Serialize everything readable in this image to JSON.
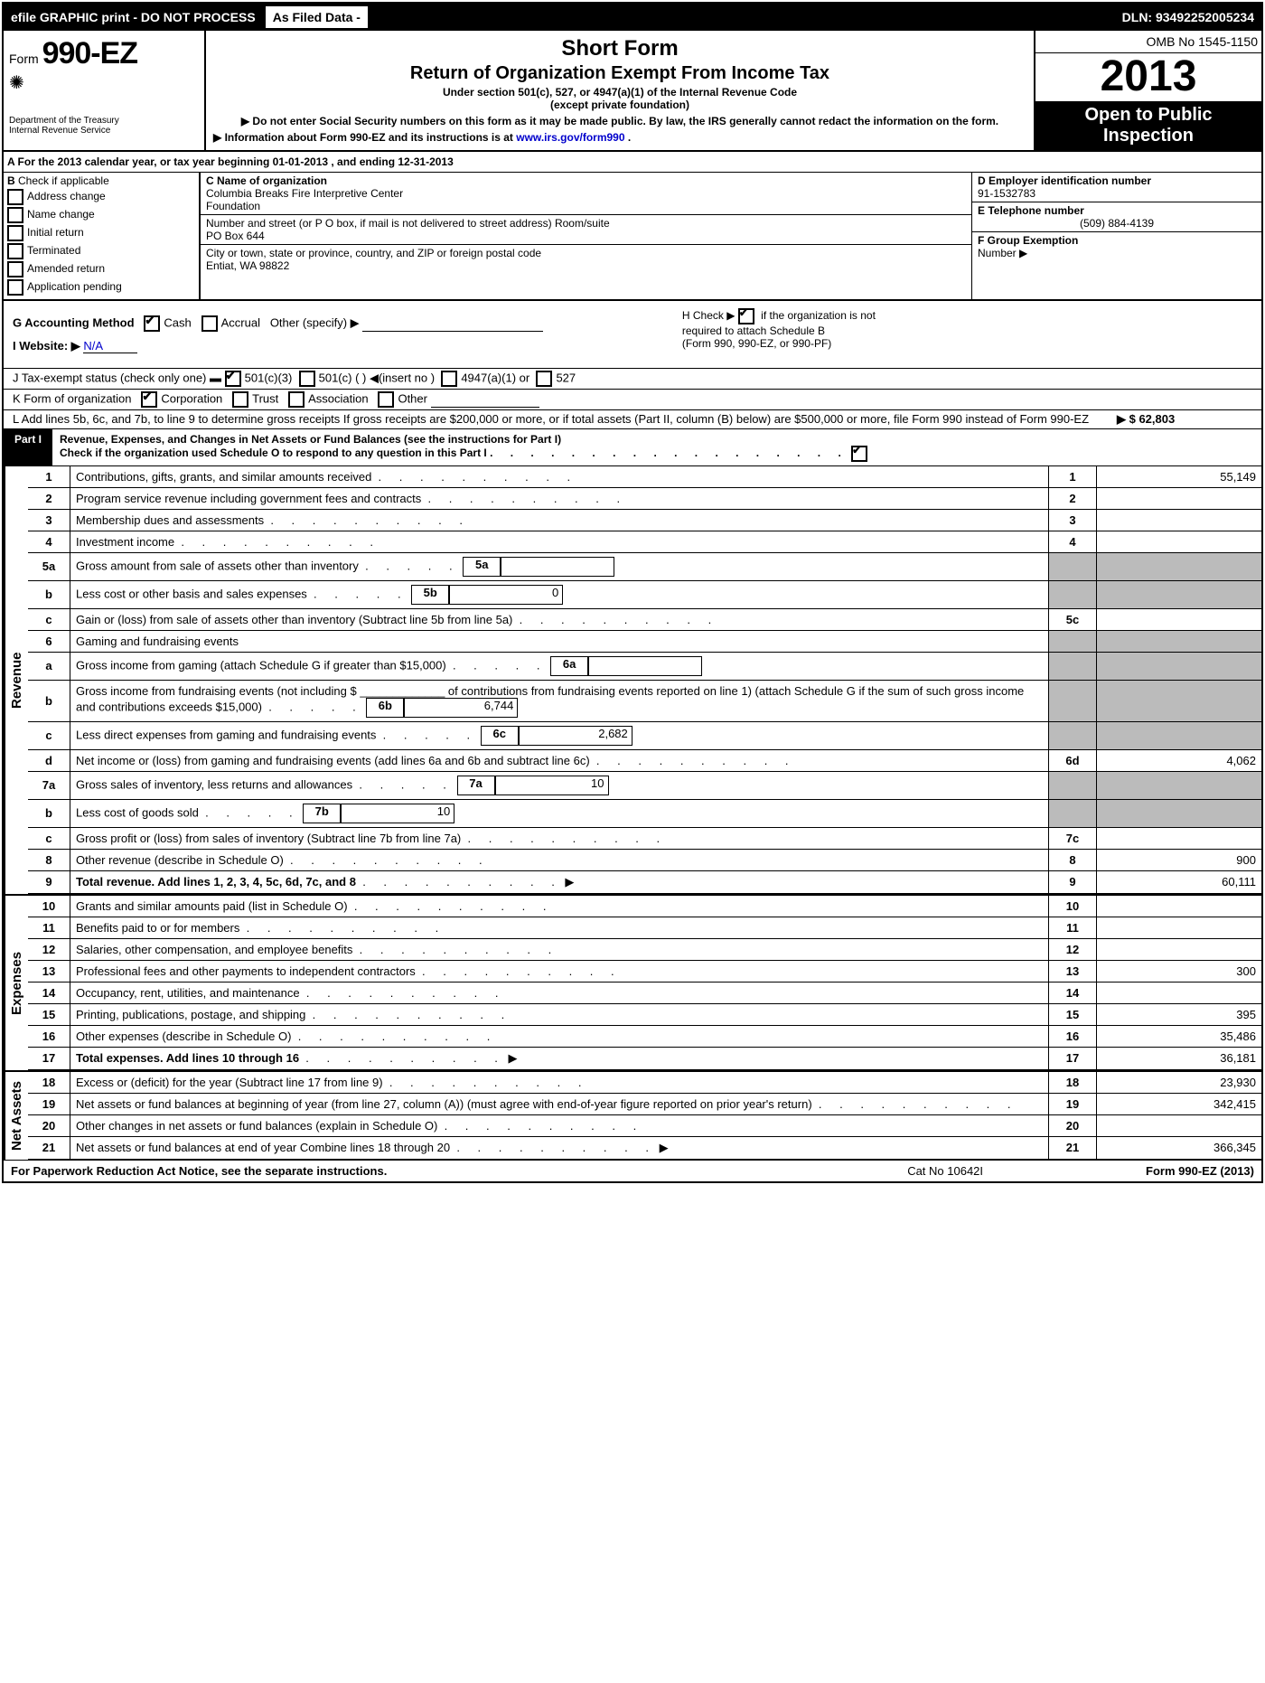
{
  "topbar": {
    "efile": "efile GRAPHIC print - DO NOT PROCESS",
    "asfiled": "As Filed Data -",
    "dln": "DLN: 93492252005234"
  },
  "header": {
    "form_prefix": "Form",
    "form_number": "990-EZ",
    "dept1": "Department of the Treasury",
    "dept2": "Internal Revenue Service",
    "short_form": "Short Form",
    "title": "Return of Organization Exempt From Income Tax",
    "subtitle": "Under section 501(c), 527, or 4947(a)(1) of the Internal Revenue Code",
    "paren": "(except private foundation)",
    "note1": "▶ Do not enter Social Security numbers on this form as it may be made public. By law, the IRS generally cannot redact the information on the form.",
    "note2_prefix": "▶ Information about Form 990-EZ and its instructions is at ",
    "note2_link": "www.irs.gov/form990",
    "note2_suffix": ".",
    "omb": "OMB No 1545-1150",
    "year": "2013",
    "open1": "Open to Public",
    "open2": "Inspection"
  },
  "lineA": "A  For the 2013 calendar year, or tax year beginning 01-01-2013           , and ending 12-31-2013",
  "B": {
    "label": "B",
    "text": "Check if applicable",
    "opts": [
      "Address change",
      "Name change",
      "Initial return",
      "Terminated",
      "Amended return",
      "Application pending"
    ]
  },
  "C": {
    "name_label": "C Name of organization",
    "name1": "Columbia Breaks Fire Interpretive Center",
    "name2": "Foundation",
    "street_label": "Number and street (or P O box, if mail is not delivered to street address) Room/suite",
    "street": "PO Box 644",
    "city_label": "City or town, state or province, country, and ZIP or foreign postal code",
    "city": "Entiat, WA 98822"
  },
  "D": {
    "ein_label": "D Employer identification number",
    "ein": "91-1532783",
    "phone_label": "E Telephone number",
    "phone": "(509) 884-4139",
    "group_label": "F Group Exemption",
    "group2": "Number      ▶"
  },
  "G": {
    "label": "G Accounting Method",
    "cash": "Cash",
    "accrual": "Accrual",
    "other": "Other (specify) ▶"
  },
  "H": {
    "text1": "H  Check ▶",
    "text2": "if the organization is not",
    "text3": "required to attach Schedule B",
    "text4": "(Form 990, 990-EZ, or 990-PF)"
  },
  "I": {
    "label": "I Website: ▶",
    "value": "N/A"
  },
  "J": {
    "label": "J Tax-exempt status",
    "text": "(check only one) ▬",
    "c3": "501(c)(3)",
    "c": "501(c) (   ) ◀(insert no )",
    "a1": "4947(a)(1) or",
    "s527": "527"
  },
  "K": {
    "label": "K Form of organization",
    "opts": [
      "Corporation",
      "Trust",
      "Association",
      "Other"
    ]
  },
  "L": {
    "text": "L Add lines 5b, 6c, and 7b, to line 9 to determine gross receipts  If gross receipts are $200,000 or more, or if total assets (Part II, column (B) below) are $500,000 or more, file Form 990 instead of Form 990-EZ",
    "amount": "▶ $ 62,803"
  },
  "partI": {
    "label": "Part I",
    "title": "Revenue, Expenses, and Changes in Net Assets or Fund Balances",
    "title2": "(see the instructions for Part I)",
    "check": "Check if the organization used Schedule O to respond to any question in this Part I"
  },
  "sections": {
    "revenue": "Revenue",
    "expenses": "Expenses",
    "netassets": "Net Assets"
  },
  "rows": [
    {
      "n": "1",
      "desc": "Contributions, gifts, grants, and similar amounts received",
      "ln": "1",
      "amt": "55,149"
    },
    {
      "n": "2",
      "desc": "Program service revenue including government fees and contracts",
      "ln": "2",
      "amt": ""
    },
    {
      "n": "3",
      "desc": "Membership dues and assessments",
      "ln": "3",
      "amt": ""
    },
    {
      "n": "4",
      "desc": "Investment income",
      "ln": "4",
      "amt": ""
    },
    {
      "n": "5a",
      "desc": "Gross amount from sale of assets other than inventory",
      "sub": "5a",
      "subamt": "",
      "shade": true
    },
    {
      "n": "b",
      "desc": "Less cost or other basis and sales expenses",
      "sub": "5b",
      "subamt": "0",
      "shade": true
    },
    {
      "n": "c",
      "desc": "Gain or (loss) from sale of assets other than inventory (Subtract line 5b from line 5a)",
      "ln": "5c",
      "amt": ""
    },
    {
      "n": "6",
      "desc": "Gaming and fundraising events",
      "shade": true,
      "noamt": true
    },
    {
      "n": "a",
      "desc": "Gross income from gaming (attach Schedule G if greater than $15,000)",
      "sub": "6a",
      "subamt": "",
      "shade": true
    },
    {
      "n": "b",
      "desc": "Gross income from fundraising events (not including $ _____________ of contributions from fundraising events reported on line 1) (attach Schedule G if the sum of such gross income and contributions exceeds $15,000)",
      "sub": "6b",
      "subamt": "6,744",
      "shade": true
    },
    {
      "n": "c",
      "desc": "Less  direct expenses from gaming and fundraising events",
      "sub": "6c",
      "subamt": "2,682",
      "shade": true
    },
    {
      "n": "d",
      "desc": "Net income or (loss) from gaming and fundraising events (add lines 6a and 6b and subtract line 6c)",
      "ln": "6d",
      "amt": "4,062"
    },
    {
      "n": "7a",
      "desc": "Gross sales of inventory, less returns and allowances",
      "sub": "7a",
      "subamt": "10",
      "shade": true
    },
    {
      "n": "b",
      "desc": "Less  cost of goods sold",
      "sub": "7b",
      "subamt": "10",
      "shade": true
    },
    {
      "n": "c",
      "desc": "Gross profit or (loss) from sales of inventory (Subtract line 7b from line 7a)",
      "ln": "7c",
      "amt": ""
    },
    {
      "n": "8",
      "desc": "Other revenue (describe in Schedule O)",
      "ln": "8",
      "amt": "900"
    },
    {
      "n": "9",
      "desc": "Total revenue. Add lines 1, 2, 3, 4, 5c, 6d, 7c, and 8",
      "ln": "9",
      "amt": "60,111",
      "bold": true,
      "arrow": true
    }
  ],
  "expRows": [
    {
      "n": "10",
      "desc": "Grants and similar amounts paid (list in Schedule O)",
      "ln": "10",
      "amt": ""
    },
    {
      "n": "11",
      "desc": "Benefits paid to or for members",
      "ln": "11",
      "amt": ""
    },
    {
      "n": "12",
      "desc": "Salaries, other compensation, and employee benefits",
      "ln": "12",
      "amt": ""
    },
    {
      "n": "13",
      "desc": "Professional fees and other payments to independent contractors",
      "ln": "13",
      "amt": "300"
    },
    {
      "n": "14",
      "desc": "Occupancy, rent, utilities, and maintenance",
      "ln": "14",
      "amt": ""
    },
    {
      "n": "15",
      "desc": "Printing, publications, postage, and shipping",
      "ln": "15",
      "amt": "395"
    },
    {
      "n": "16",
      "desc": "Other expenses (describe in Schedule O)",
      "ln": "16",
      "amt": "35,486"
    },
    {
      "n": "17",
      "desc": "Total expenses. Add lines 10 through 16",
      "ln": "17",
      "amt": "36,181",
      "bold": true,
      "arrow": true
    }
  ],
  "naRows": [
    {
      "n": "18",
      "desc": "Excess or (deficit) for the year (Subtract line 17 from line 9)",
      "ln": "18",
      "amt": "23,930"
    },
    {
      "n": "19",
      "desc": "Net assets or fund balances at beginning of year (from line 27, column (A)) (must agree with end-of-year figure reported on prior year's return)",
      "ln": "19",
      "amt": "342,415"
    },
    {
      "n": "20",
      "desc": "Other changes in net assets or fund balances (explain in Schedule O)",
      "ln": "20",
      "amt": ""
    },
    {
      "n": "21",
      "desc": "Net assets or fund balances at end of year  Combine lines 18 through 20",
      "ln": "21",
      "amt": "366,345",
      "arrow": true
    }
  ],
  "footer": {
    "paperwork": "For Paperwork Reduction Act Notice, see the separate instructions.",
    "cat": "Cat No 10642I",
    "form": "Form 990-EZ (2013)"
  }
}
